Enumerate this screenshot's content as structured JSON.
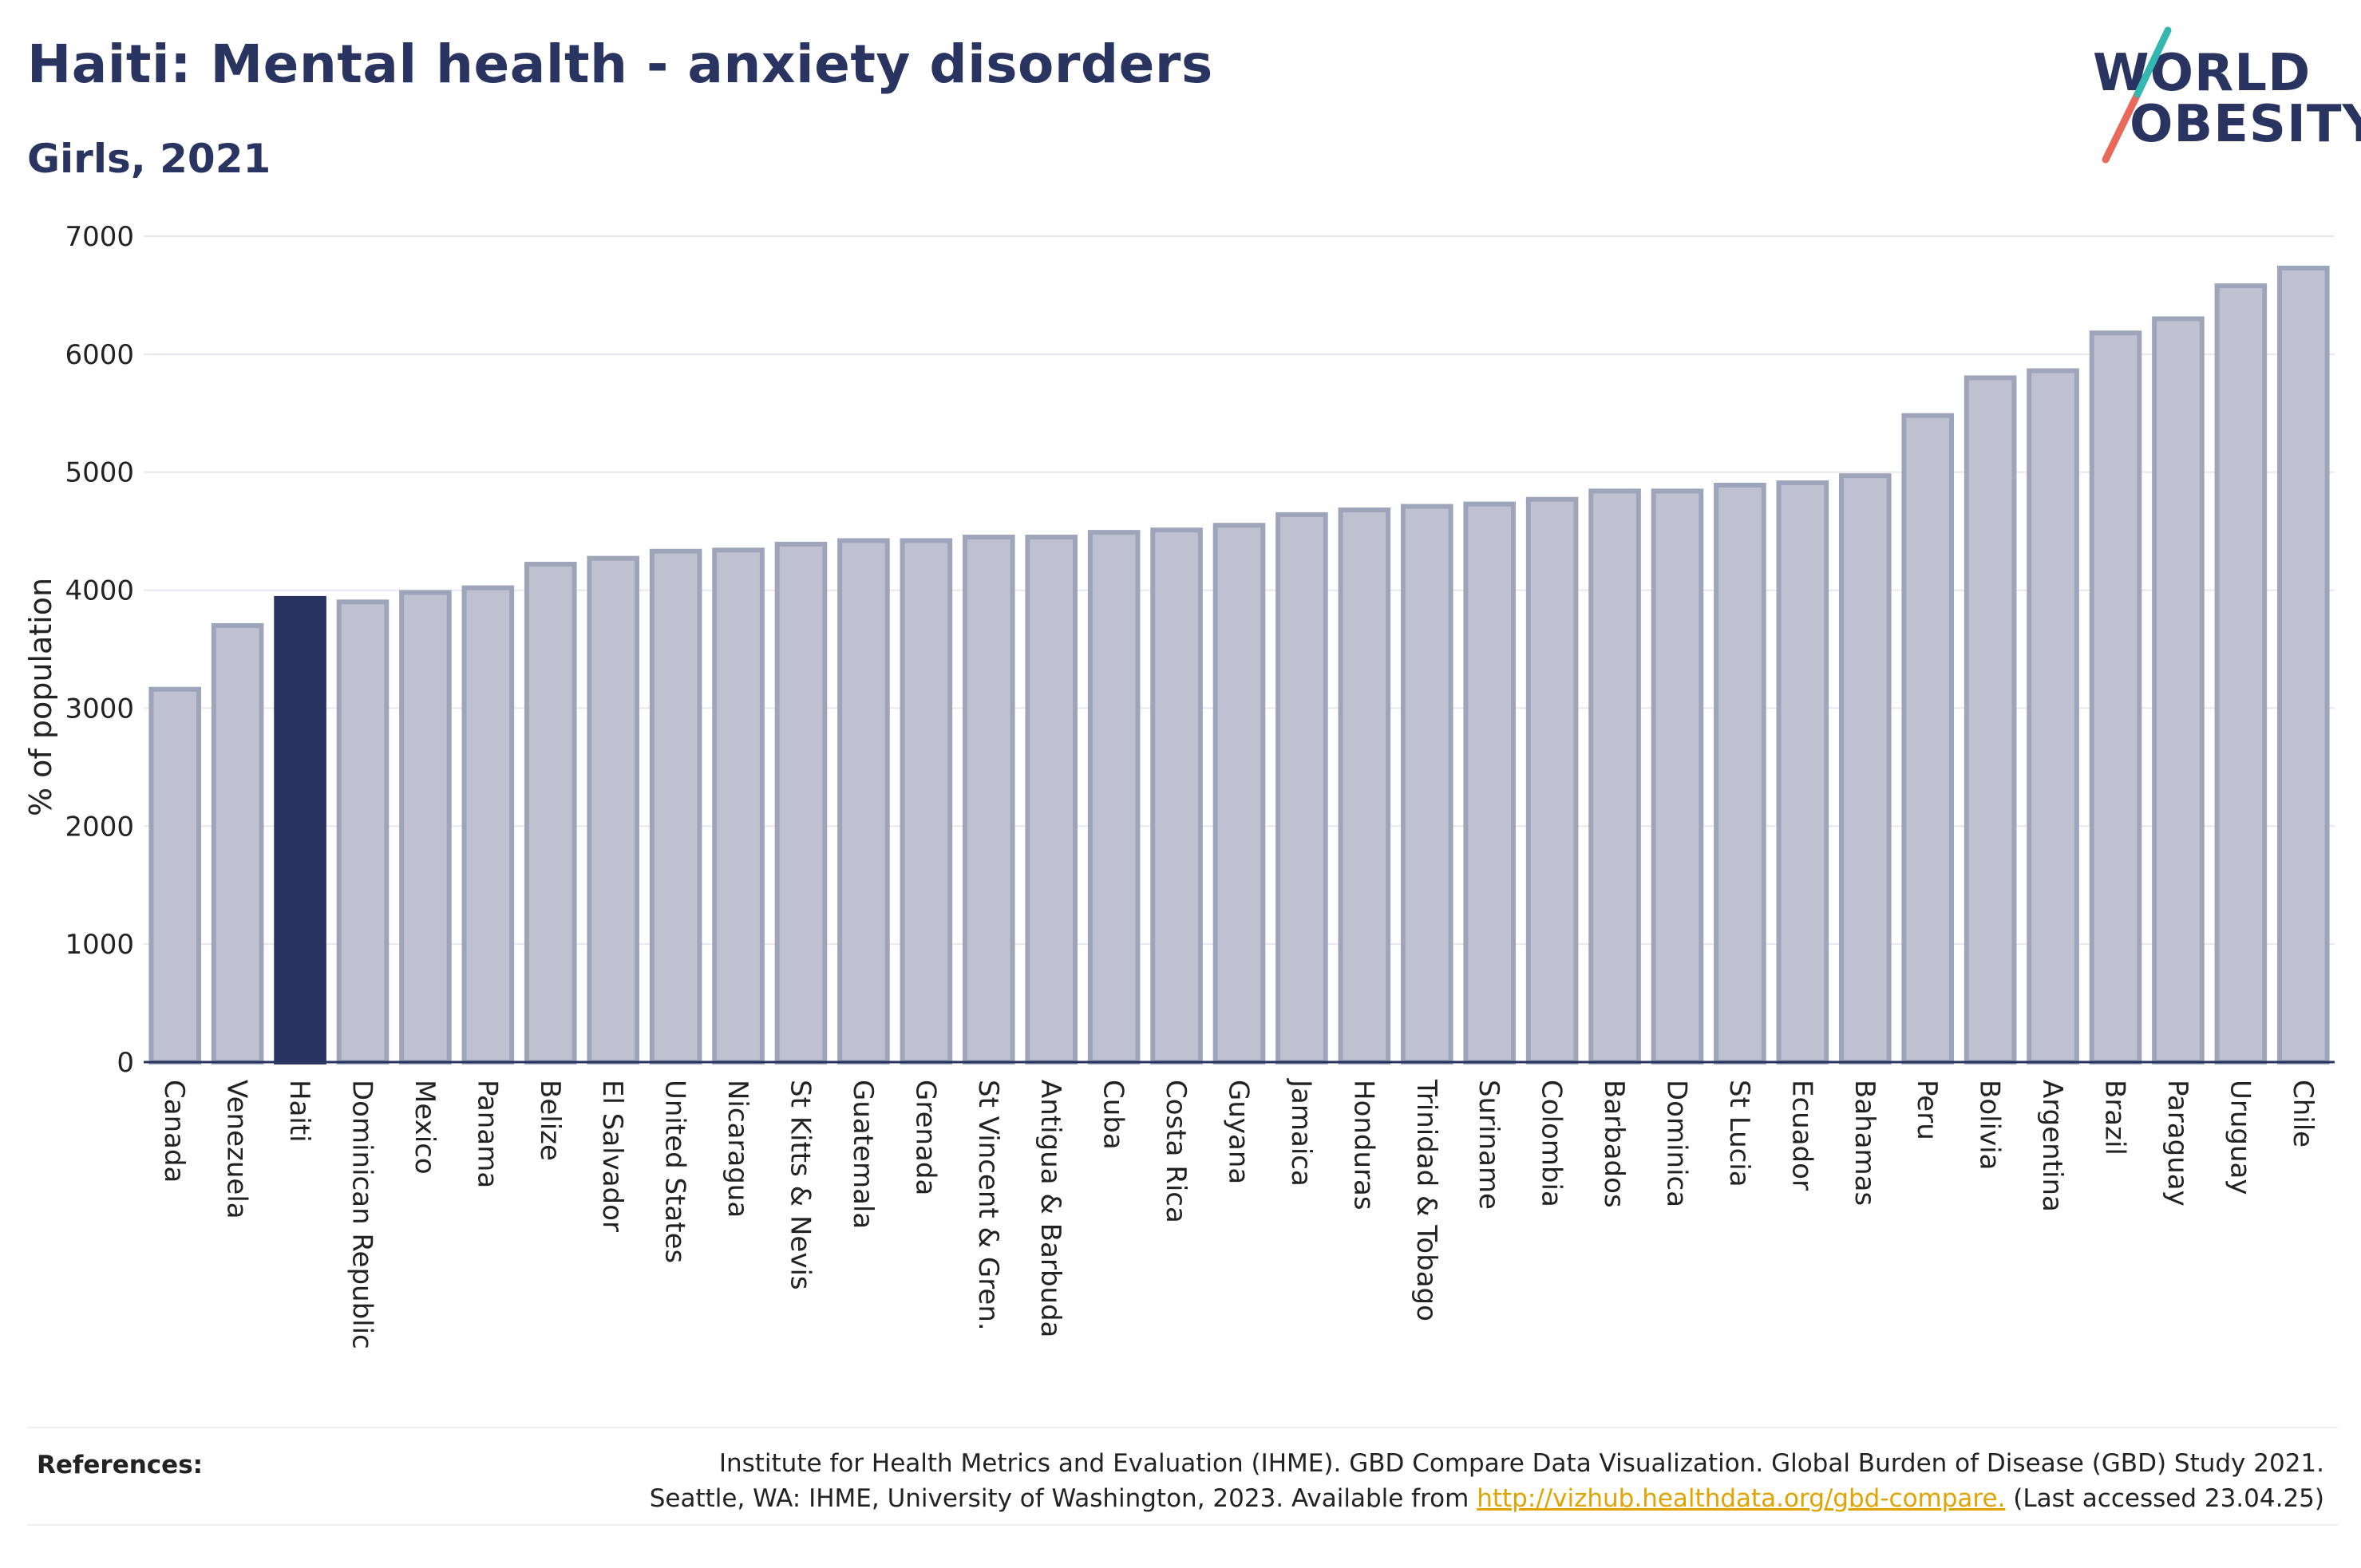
{
  "header": {
    "title": "Haiti: Mental health - anxiety disorders",
    "subtitle": "Girls, 2021"
  },
  "logo": {
    "line1": "WORLD",
    "line2": "OBESITY",
    "accent_teal": "#33b7b0",
    "accent_coral": "#e8685a"
  },
  "colors": {
    "bar": "#bec2d0",
    "bar_stroke": "#9ea4ba",
    "highlight": "#2a3460",
    "grid": "#e6e8ee",
    "axis": "#2a3460"
  },
  "chart_data": {
    "type": "bar",
    "ylabel": "% of population",
    "ylim": [
      0,
      7000
    ],
    "yticks": [
      0,
      1000,
      2000,
      3000,
      4000,
      5000,
      6000,
      7000
    ],
    "grid": true,
    "highlight": "Haiti",
    "categories": [
      "Canada",
      "Venezuela",
      "Haiti",
      "Dominican Republic",
      "Mexico",
      "Panama",
      "Belize",
      "El Salvador",
      "United States",
      "Nicaragua",
      "St Kitts & Nevis",
      "Guatemala",
      "Grenada",
      "St Vincent & Gren.",
      "Antigua & Barbuda",
      "Cuba",
      "Costa Rica",
      "Guyana",
      "Jamaica",
      "Honduras",
      "Trinidad & Tobago",
      "Suriname",
      "Colombia",
      "Barbados",
      "Dominica",
      "St Lucia",
      "Ecuador",
      "Bahamas",
      "Peru",
      "Bolivia",
      "Argentina",
      "Brazil",
      "Paraguay",
      "Uruguay",
      "Chile"
    ],
    "values": [
      3160,
      3700,
      3930,
      3900,
      3980,
      4020,
      4220,
      4270,
      4330,
      4340,
      4390,
      4420,
      4420,
      4450,
      4450,
      4490,
      4510,
      4550,
      4640,
      4680,
      4710,
      4730,
      4770,
      4840,
      4840,
      4890,
      4910,
      4970,
      5480,
      5800,
      5860,
      6180,
      6300,
      6580,
      6730
    ]
  },
  "references": {
    "label": "References:",
    "line1": "Institute for Health Metrics and Evaluation (IHME). GBD Compare Data Visualization. Global Burden of Disease (GBD) Study 2021.",
    "line2_prefix": "Seattle, WA: IHME, University of Washington, 2023. Available from ",
    "link": "http://vizhub.healthdata.org/gbd-compare.",
    "line2_suffix": " (Last accessed 23.04.25)"
  }
}
